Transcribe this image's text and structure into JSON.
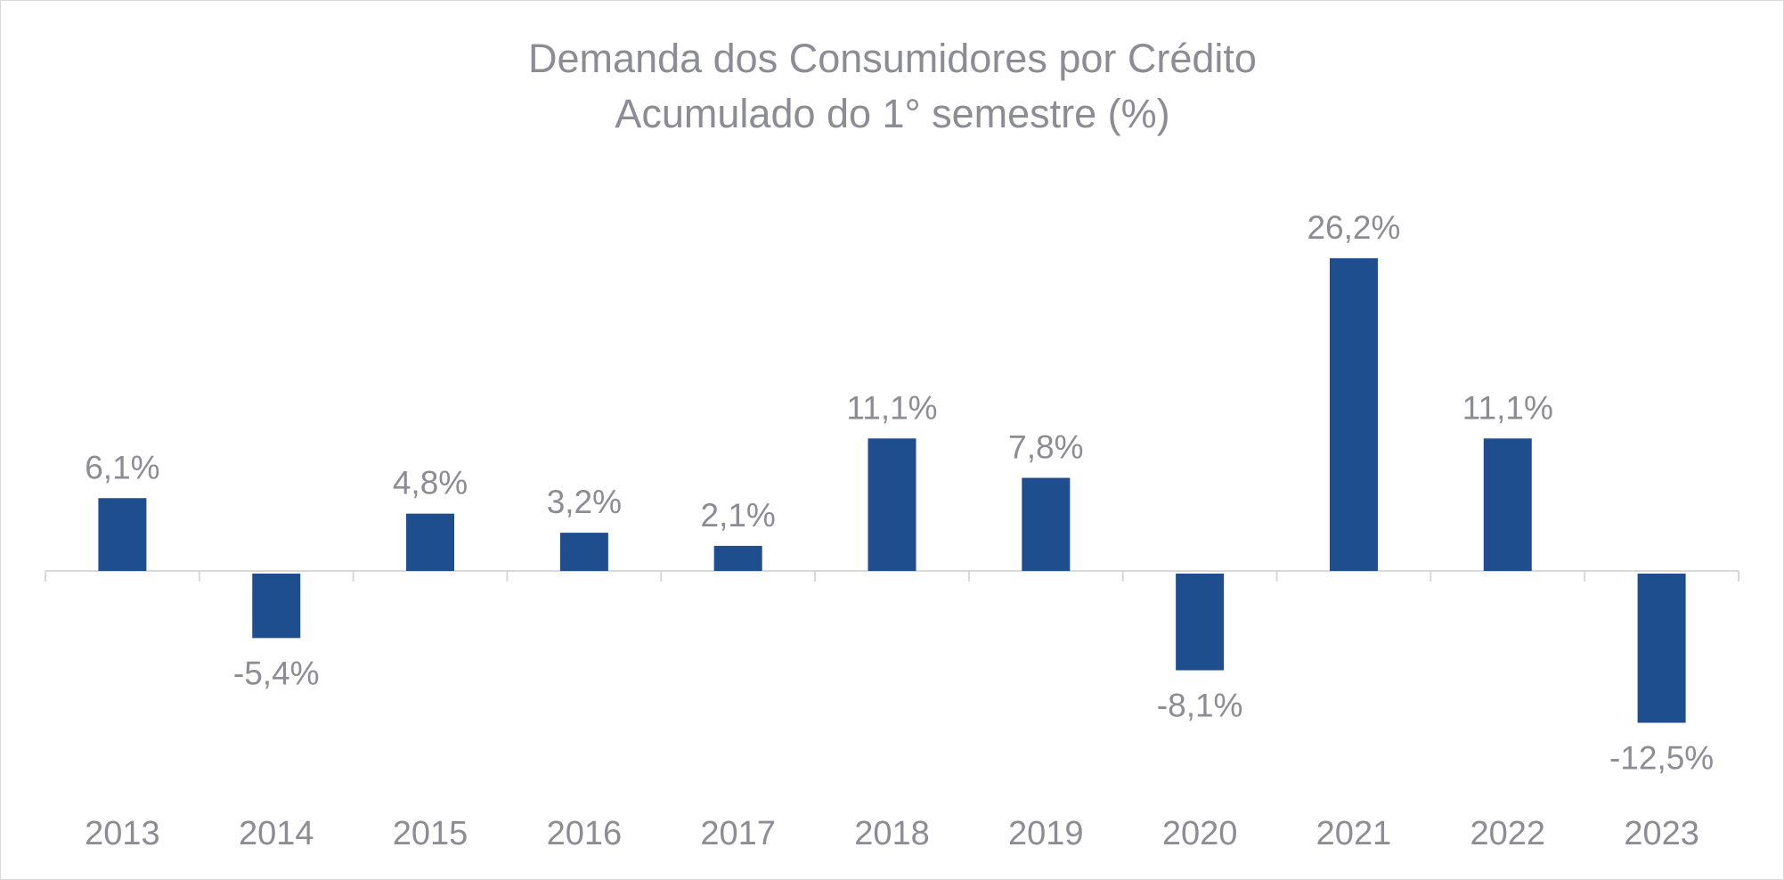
{
  "chart_data": {
    "type": "bar",
    "title": "Demanda dos Consumidores por Crédito",
    "subtitle": "Acumulado do 1° semestre (%)",
    "categories": [
      "2013",
      "2014",
      "2015",
      "2016",
      "2017",
      "2018",
      "2019",
      "2020",
      "2021",
      "2022",
      "2023"
    ],
    "values": [
      6.1,
      -5.4,
      4.8,
      3.2,
      2.1,
      11.1,
      7.8,
      -8.1,
      26.2,
      11.1,
      -12.5
    ],
    "data_labels": [
      "6,1%",
      "-5,4%",
      "4,8%",
      "3,2%",
      "2,1%",
      "11,1%",
      "7,8%",
      "-8,1%",
      "26,2%",
      "11,1%",
      "-12,5%"
    ],
    "bar_color": "#1f4e8f",
    "text_color": "#8c8c94",
    "axis_color": "#d9d9d9",
    "grid": false,
    "legend": "none"
  }
}
